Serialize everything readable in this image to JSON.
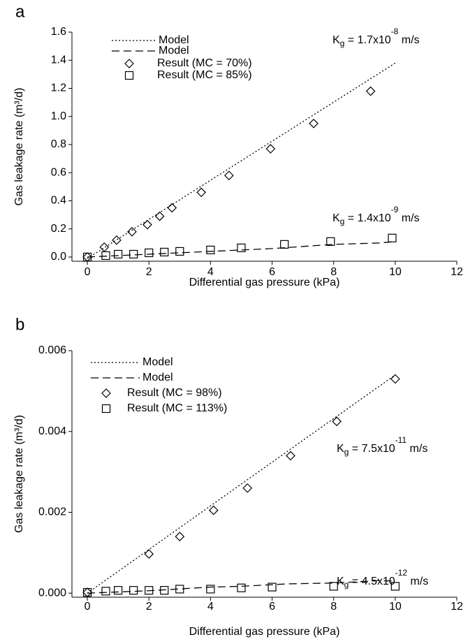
{
  "chart_data": [
    {
      "type": "scatter",
      "panel_label": "a",
      "x_label": "Differential gas pressure (kPa)",
      "y_label": "Gas leakage rate (m³/d)",
      "xlim": [
        -0.5,
        12
      ],
      "ylim": [
        -0.03,
        1.6
      ],
      "xticks": [
        0,
        2,
        4,
        6,
        8,
        10,
        12
      ],
      "yticks": [
        {
          "value": 0,
          "label": "0.0"
        },
        0.2,
        0.4,
        0.6,
        0.8,
        {
          "value": 1,
          "label": "1.0"
        },
        1.2,
        1.4,
        1.6
      ],
      "annotations": [
        [
          {
            "text": "K"
          },
          {
            "sub": "g"
          },
          {
            "text": " = 1.7x10"
          },
          {
            "sup": "-8"
          },
          {
            "text": " m/s"
          }
        ],
        [
          {
            "text": "K"
          },
          {
            "sub": "g"
          },
          {
            "text": " = 1.4x10"
          },
          {
            "sup": "-9"
          },
          {
            "text": " m/s"
          }
        ]
      ],
      "series": [
        {
          "name": "Model",
          "style": "dotted",
          "color": "#000000",
          "x": [
            0,
            10
          ],
          "values": [
            -0.01,
            1.38
          ]
        },
        {
          "name": "Model",
          "style": "dashed",
          "color": "#000000",
          "x": [
            0,
            3,
            6,
            8,
            9.5,
            10
          ],
          "values": [
            0,
            0.03,
            0.06,
            0.09,
            0.1,
            0.11
          ]
        },
        {
          "name": "Result (MC = 70%)",
          "style": "diamond",
          "color": "#000000",
          "x": [
            0,
            0.55,
            0.95,
            1.45,
            1.95,
            2.35,
            2.75,
            3.7,
            4.6,
            5.95,
            7.35,
            9.2
          ],
          "values": [
            0,
            0.07,
            0.12,
            0.18,
            0.23,
            0.29,
            0.35,
            0.46,
            0.58,
            0.77,
            0.95,
            1.18
          ]
        },
        {
          "name": "Result (MC = 85%)",
          "style": "square",
          "color": "#000000",
          "x": [
            0,
            0.6,
            1,
            1.5,
            2,
            2.5,
            3,
            4,
            5,
            6.4,
            7.9,
            9.9
          ],
          "values": [
            0,
            0.01,
            0.02,
            0.02,
            0.03,
            0.035,
            0.04,
            0.05,
            0.065,
            0.09,
            0.11,
            0.135
          ]
        }
      ]
    },
    {
      "type": "scatter",
      "panel_label": "b",
      "x_label": "Differential gas pressure (kPa)",
      "y_label": "Gas leakage rate (m³/d)",
      "xlim": [
        -0.5,
        12
      ],
      "ylim": [
        -0.0001,
        0.006
      ],
      "xticks": [
        0,
        2,
        4,
        6,
        8,
        10,
        12
      ],
      "yticks": [
        {
          "value": 0,
          "label": "0.000"
        },
        {
          "value": 0.002,
          "label": "0.002"
        },
        {
          "value": 0.004,
          "label": "0.004"
        },
        {
          "value": 0.006,
          "label": "0.006"
        }
      ],
      "annotations": [
        [
          {
            "text": "K"
          },
          {
            "sub": "g"
          },
          {
            "text": " = 7.5x10"
          },
          {
            "sup": "-11"
          },
          {
            "text": " m/s"
          }
        ],
        [
          {
            "text": "K"
          },
          {
            "sub": "g"
          },
          {
            "text": " = 4.5x10"
          },
          {
            "sup": "-12"
          },
          {
            "text": " m/s"
          }
        ]
      ],
      "series": [
        {
          "name": "Model",
          "style": "dotted",
          "color": "#000000",
          "x": [
            0,
            10
          ],
          "values": [
            0,
            0.0054
          ]
        },
        {
          "name": "Model",
          "style": "dashed",
          "color": "#000000",
          "x": [
            0,
            2,
            4,
            5,
            6.5,
            8,
            9.5,
            10
          ],
          "values": [
            0,
            6e-05,
            0.00015,
            0.00017,
            0.00023,
            0.00025,
            0.00031,
            0.0003
          ]
        },
        {
          "name": "Result (MC = 98%)",
          "style": "diamond",
          "color": "#000000",
          "x": [
            0,
            2,
            3,
            4.1,
            5.2,
            6.6,
            8.1,
            10
          ],
          "values": [
            2e-05,
            0.00097,
            0.0014,
            0.00205,
            0.0026,
            0.0034,
            0.00425,
            0.0053
          ]
        },
        {
          "name": "Result (MC = 113%)",
          "style": "square",
          "color": "#000000",
          "x": [
            0,
            0.6,
            1,
            1.5,
            2,
            2.5,
            3,
            4,
            5,
            6,
            8,
            10
          ],
          "values": [
            2e-05,
            5e-05,
            7e-05,
            7e-05,
            7e-05,
            7e-05,
            0.0001,
            0.0001,
            0.00013,
            0.00015,
            0.00017,
            0.00017
          ]
        }
      ]
    }
  ]
}
